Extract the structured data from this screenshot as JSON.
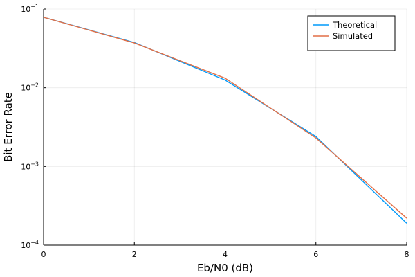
{
  "chart_data": {
    "type": "line",
    "title": "",
    "xlabel": "Eb/N0 (dB)",
    "ylabel": "Bit Error Rate",
    "x": [
      0,
      2,
      4,
      6,
      8
    ],
    "series": [
      {
        "name": "Theoretical",
        "color": "#009AFA",
        "values": [
          0.0786,
          0.0375,
          0.0125,
          0.0024,
          0.00019
        ]
      },
      {
        "name": "Simulated",
        "color": "#E26F46",
        "values": [
          0.0786,
          0.037,
          0.0132,
          0.0023,
          0.00022
        ]
      }
    ],
    "xlim": [
      0,
      8
    ],
    "ylim": [
      0.0001,
      0.1
    ],
    "yscale": "log",
    "xticks": [
      "0",
      "2",
      "4",
      "6",
      "8"
    ],
    "yticks": [
      {
        "value": 0.0001,
        "base": "10",
        "exp": "−4"
      },
      {
        "value": 0.001,
        "base": "10",
        "exp": "−3"
      },
      {
        "value": 0.01,
        "base": "10",
        "exp": "−2"
      },
      {
        "value": 0.1,
        "base": "10",
        "exp": "−1"
      }
    ],
    "grid": true,
    "legend_position": "top-right"
  }
}
